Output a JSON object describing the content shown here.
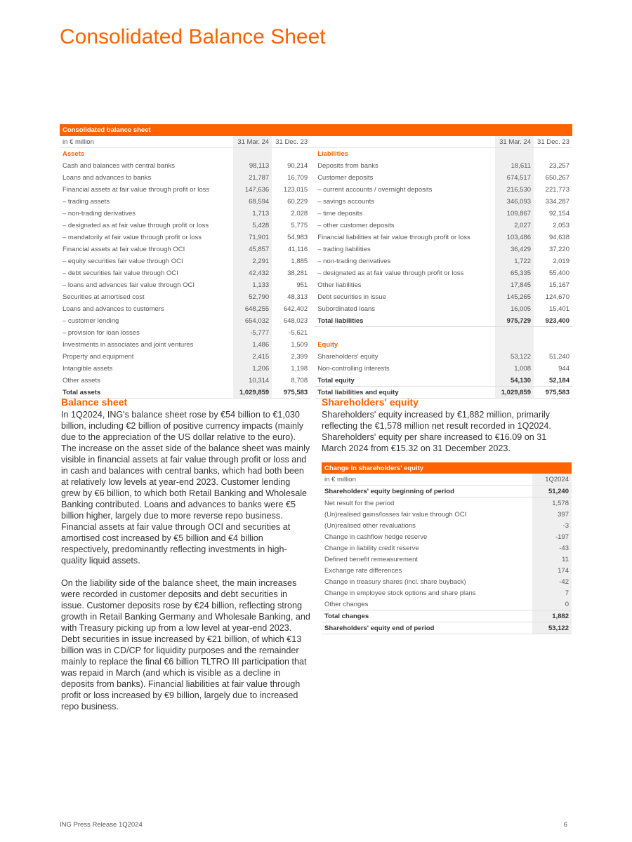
{
  "page_title": "Consolidated Balance Sheet",
  "accent_color": "#ff6200",
  "balance_table": {
    "caption": "Consolidated balance sheet",
    "unit": "in € million",
    "columns": [
      "31 Mar. 24",
      "31 Dec. 23"
    ],
    "assets": [
      {
        "label": "Assets",
        "type": "section"
      },
      {
        "label": "Cash and balances with central banks",
        "v1": "98,113",
        "v2": "90,214"
      },
      {
        "label": "Loans and advances to banks",
        "v1": "21,787",
        "v2": "16,709"
      },
      {
        "label": "Financial assets at fair value through profit or loss",
        "v1": "147,636",
        "v2": "123,015"
      },
      {
        "label": "– trading assets",
        "v1": "68,594",
        "v2": "60,229"
      },
      {
        "label": "– non-trading derivatives",
        "v1": "1,713",
        "v2": "2,028"
      },
      {
        "label": "– designated as at fair value through profit or loss",
        "v1": "5,428",
        "v2": "5,775"
      },
      {
        "label": "– mandatorily at fair value through profit or loss",
        "v1": "71,901",
        "v2": "54,983"
      },
      {
        "label": "Financial assets at fair value through OCI",
        "v1": "45,857",
        "v2": "41,116"
      },
      {
        "label": "– equity securities fair value through OCI",
        "v1": "2,291",
        "v2": "1,885"
      },
      {
        "label": "– debt securities fair value through OCI",
        "v1": "42,432",
        "v2": "38,281"
      },
      {
        "label": "– loans and advances fair value through OCI",
        "v1": "1,133",
        "v2": "951"
      },
      {
        "label": "Securities at amortised cost",
        "v1": "52,790",
        "v2": "48,313"
      },
      {
        "label": "Loans and advances to customers",
        "v1": "648,255",
        "v2": "642,402"
      },
      {
        "label": "– customer lending",
        "v1": "654,032",
        "v2": "648,023"
      },
      {
        "label": "– provision for loan losses",
        "v1": "-5,777",
        "v2": "-5,621"
      },
      {
        "label": "Investments in associates and joint ventures",
        "v1": "1,486",
        "v2": "1,509"
      },
      {
        "label": "Property and equipment",
        "v1": "2,415",
        "v2": "2,399"
      },
      {
        "label": "Intangible assets",
        "v1": "1,206",
        "v2": "1,198"
      },
      {
        "label": "Other assets",
        "v1": "10,314",
        "v2": "8,708"
      },
      {
        "label": "Total assets",
        "v1": "1,029,859",
        "v2": "975,583",
        "type": "bold"
      }
    ],
    "liabilities": [
      {
        "label": "Liabilities",
        "type": "section"
      },
      {
        "label": "Deposits from banks",
        "v1": "18,611",
        "v2": "23,257"
      },
      {
        "label": "Customer deposits",
        "v1": "674,517",
        "v2": "650,267"
      },
      {
        "label": "– current accounts / overnight deposits",
        "v1": "216,530",
        "v2": "221,773"
      },
      {
        "label": "– savings accounts",
        "v1": "346,093",
        "v2": "334,287"
      },
      {
        "label": "– time deposits",
        "v1": "109,867",
        "v2": "92,154"
      },
      {
        "label": "– other customer deposits",
        "v1": "2,027",
        "v2": "2,053"
      },
      {
        "label": "Financial liabilities at fair value through profit or loss",
        "v1": "103,486",
        "v2": "94,638"
      },
      {
        "label": "– trading liabilities",
        "v1": "36,429",
        "v2": "37,220"
      },
      {
        "label": "– non-trading derivatives",
        "v1": "1,722",
        "v2": "2,019"
      },
      {
        "label": "– designated as at fair value through profit or loss",
        "v1": "65,335",
        "v2": "55,400"
      },
      {
        "label": "Other liabilities",
        "v1": "17,845",
        "v2": "15,167"
      },
      {
        "label": "Debt securities in issue",
        "v1": "145,265",
        "v2": "124,670"
      },
      {
        "label": "Subordinated loans",
        "v1": "16,005",
        "v2": "15,401"
      },
      {
        "label": "Total liabilities",
        "v1": "975,729",
        "v2": "923,400",
        "type": "bold"
      },
      {
        "label": "",
        "type": "blank"
      },
      {
        "label": "Equity",
        "type": "section"
      },
      {
        "label": "Shareholders' equity",
        "v1": "53,122",
        "v2": "51,240"
      },
      {
        "label": "Non-controlling interests",
        "v1": "1,008",
        "v2": "944"
      },
      {
        "label": "Total equity",
        "v1": "54,130",
        "v2": "52,184",
        "type": "bold"
      },
      {
        "label": "Total liabilities and equity",
        "v1": "1,029,859",
        "v2": "975,583",
        "type": "bold"
      }
    ]
  },
  "balance_section": {
    "heading": "Balance sheet",
    "paragraphs": [
      "In 1Q2024, ING's balance sheet rose by €54 billion to €1,030 billion, including €2 billion of positive currency impacts (mainly due to the appreciation of the US dollar relative to the euro). The increase on the asset side of the balance sheet was mainly visible in financial assets at fair value through profit or loss and in cash and balances with central banks, which had both been at relatively low levels at year-end 2023. Customer lending grew by €6 billion, to which both Retail Banking and Wholesale Banking contributed. Loans and advances to banks were €5 billion higher, largely due to more reverse repo business. Financial assets at fair value through OCI and securities at amortised cost increased by €5 billion and €4 billion respectively, predominantly reflecting investments in high-quality liquid assets.",
      "On the liability side of the balance sheet, the main increases were recorded in customer deposits and debt securities in issue. Customer deposits rose by €24 billion, reflecting strong growth in Retail Banking Germany and Wholesale Banking, and with Treasury picking up from a low level at year-end 2023. Debt securities in issue increased by €21 billion, of which €13 billion was in CD/CP for liquidity purposes and the remainder mainly to replace the final €6 billion TLTRO III participation that was repaid in March (and which is visible as a decline in deposits from banks). Financial liabilities at fair value through profit or loss increased by €9 billion, largely due to increased repo business."
    ]
  },
  "equity_section": {
    "heading": "Shareholders' equity",
    "paragraph": "Shareholders' equity increased by €1,882 million, primarily reflecting the €1,578 million net result recorded in 1Q2024. Shareholders' equity per share increased to €16.09 on 31 March 2024 from €15.32 on 31 December 2023."
  },
  "equity_table": {
    "caption": "Change in shareholders' equity",
    "unit": "in € million",
    "column": "1Q2024",
    "rows": [
      {
        "label": "Shareholders' equity beginning of period",
        "value": "51,240",
        "type": "bold"
      },
      {
        "label": "Net result for the period",
        "value": "1,578"
      },
      {
        "label": "(Un)realised gains/losses fair value through OCI",
        "value": "397"
      },
      {
        "label": "(Un)realised other revaluations",
        "value": "-3"
      },
      {
        "label": "Change in cashflow hedge reserve",
        "value": "-197"
      },
      {
        "label": "Change in liability credit reserve",
        "value": "-43"
      },
      {
        "label": "Defined benefit remeasurement",
        "value": "11"
      },
      {
        "label": "Exchange rate differences",
        "value": "174"
      },
      {
        "label": "Change in treasury shares (incl. share buyback)",
        "value": "-42"
      },
      {
        "label": "Change in employee stock options and share plans",
        "value": "7"
      },
      {
        "label": "Other changes",
        "value": "0"
      },
      {
        "label": "Total changes",
        "value": "1,882",
        "type": "bold"
      },
      {
        "label": "Shareholders' equity end of period",
        "value": "53,122",
        "type": "bold"
      }
    ]
  },
  "footer": {
    "left": "ING Press Release 1Q2024",
    "page": "6"
  }
}
